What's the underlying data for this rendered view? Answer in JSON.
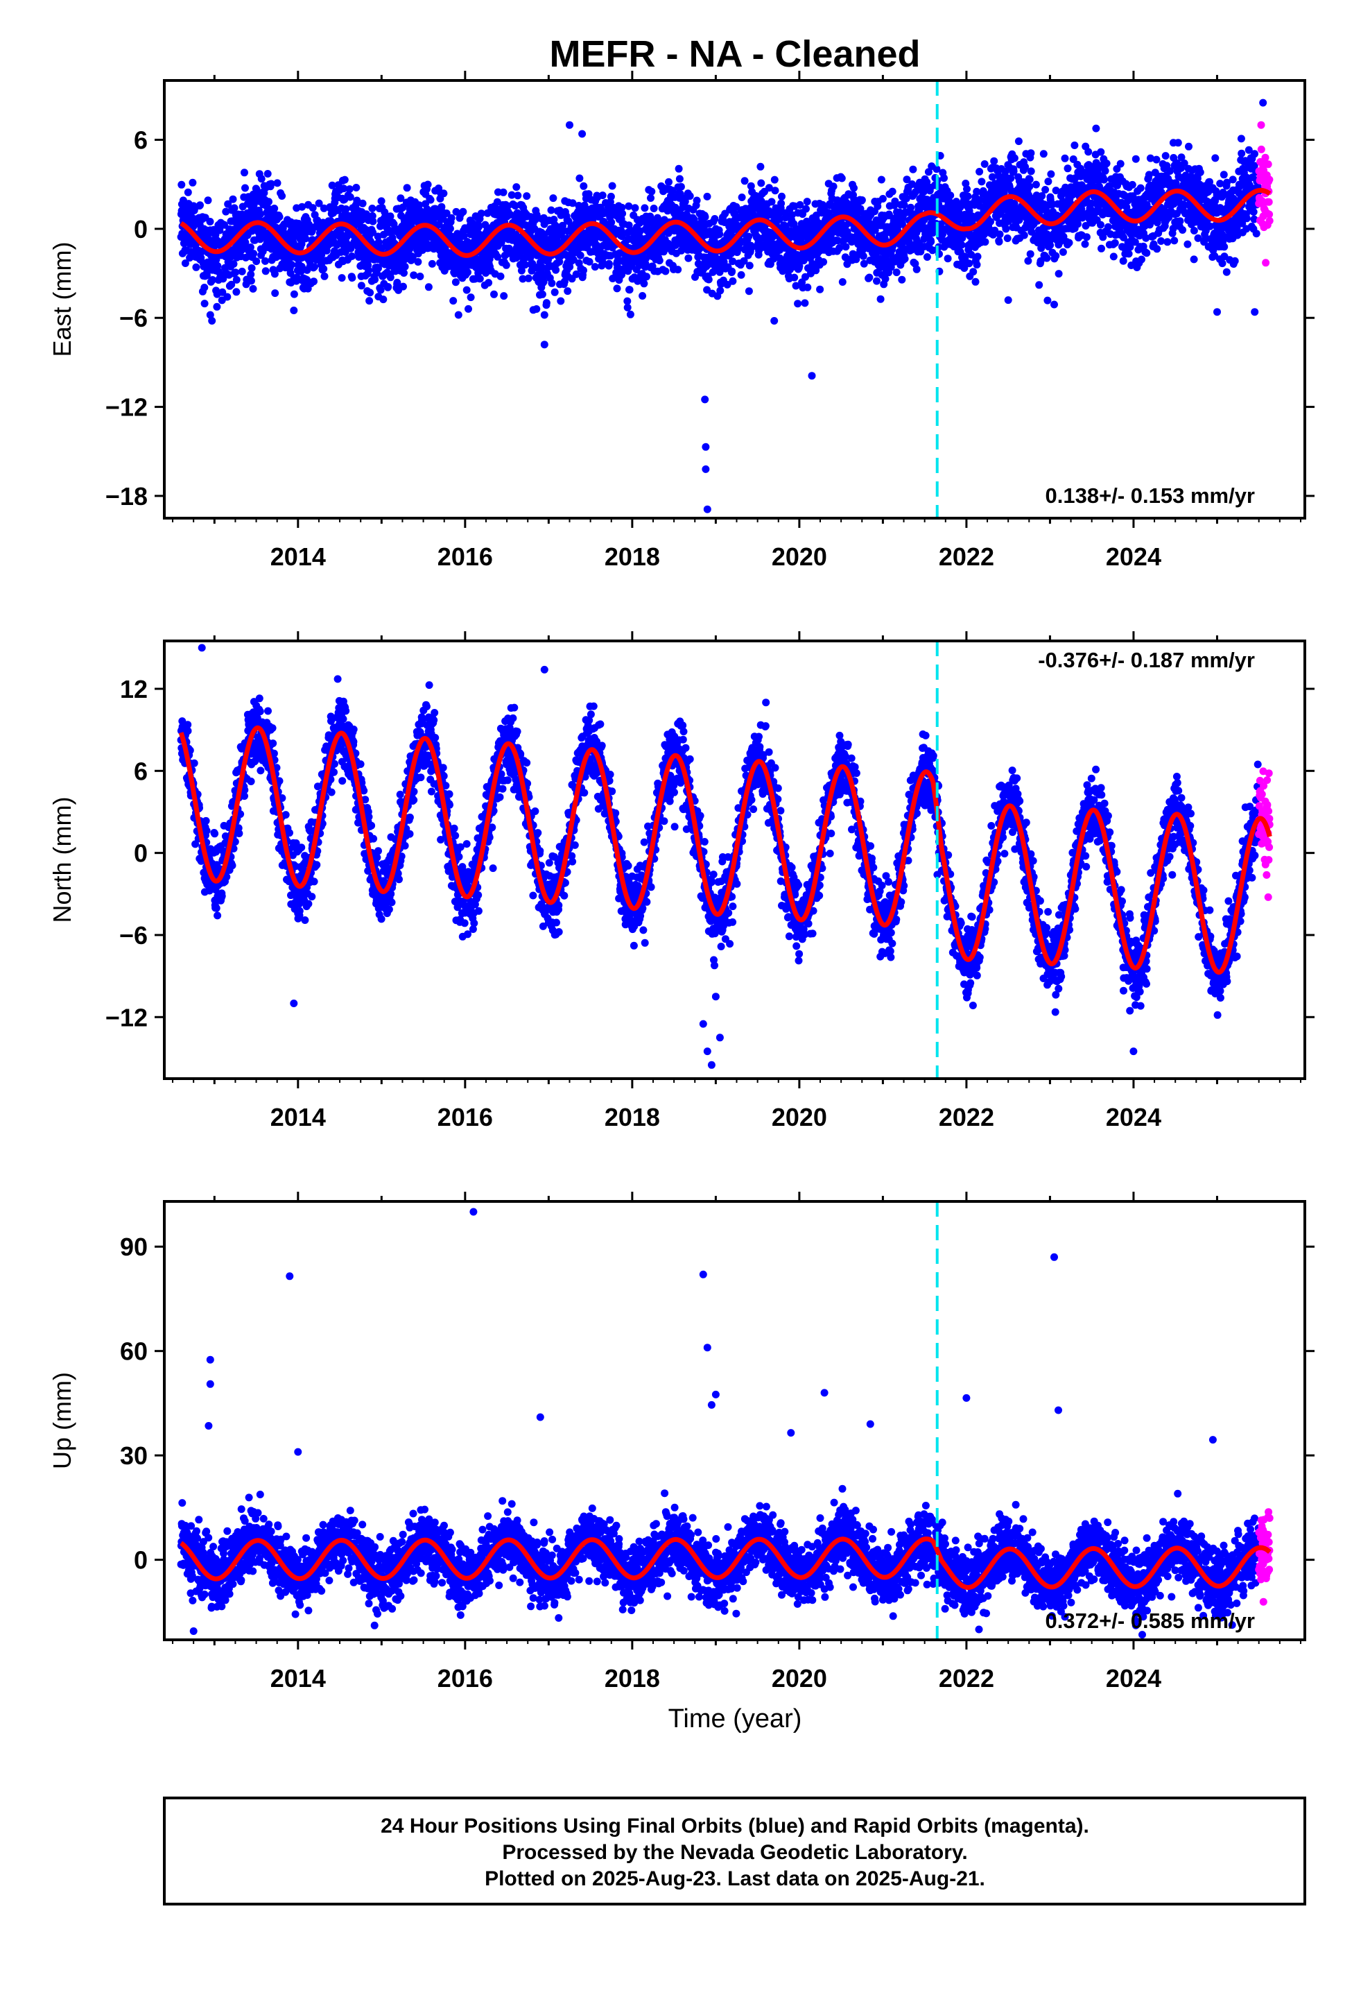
{
  "title": "MEFR  - NA - Cleaned",
  "colors": {
    "final_orbits": "#0000ff",
    "rapid_orbits": "#ff00ff",
    "model_fit": "#ff0000",
    "equipment_change": "#00e5ee",
    "frame": "#000000"
  },
  "x_axis": {
    "label": "Time (year)",
    "range": [
      2012.4,
      2026.05
    ],
    "ticks": [
      2014,
      2016,
      2018,
      2020,
      2022,
      2024
    ],
    "tick_labels": [
      "2014",
      "2016",
      "2018",
      "2020",
      "2022",
      "2024"
    ]
  },
  "footnote": {
    "line1": "24 Hour Positions Using Final Orbits (blue) and Rapid Orbits (magenta).",
    "line2": "Processed by the Nevada Geodetic Laboratory.",
    "line3": "Plotted on 2025-Aug-23. Last data on 2025-Aug-21."
  },
  "chart_data": [
    {
      "type": "scatter",
      "component": "East",
      "ylabel": "East (mm)",
      "ylim": [
        -19.5,
        10
      ],
      "yticks": [
        6,
        0,
        -6,
        -12,
        -18
      ],
      "ytick_labels": [
        "6",
        "0",
        "−6",
        "−12",
        "−18"
      ],
      "rate_label": "0.138+/- 0.153 mm/yr",
      "equipment_change_year": 2021.65,
      "final_orbits_span": [
        2012.6,
        2025.5
      ],
      "rapid_orbits_span": [
        2025.5,
        2025.63
      ],
      "model": {
        "mean_trend": [
          [
            2012.6,
            -0.5
          ],
          [
            2016.0,
            -0.8
          ],
          [
            2019.0,
            -0.5
          ],
          [
            2021.5,
            0.0
          ],
          [
            2022.0,
            1.0
          ],
          [
            2023.5,
            1.5
          ],
          [
            2025.6,
            1.6
          ]
        ],
        "annual_amplitude": 1.0,
        "scatter": 1.4
      },
      "outliers": [
        {
          "x": 2012.95,
          "y": -5.8
        },
        {
          "x": 2012.97,
          "y": -6.2
        },
        {
          "x": 2016.95,
          "y": -7.8
        },
        {
          "x": 2016.95,
          "y": -5.8
        },
        {
          "x": 2017.25,
          "y": 7.0
        },
        {
          "x": 2017.4,
          "y": 6.4
        },
        {
          "x": 2018.87,
          "y": -11.5
        },
        {
          "x": 2018.88,
          "y": -14.7
        },
        {
          "x": 2018.88,
          "y": -16.2
        },
        {
          "x": 2018.9,
          "y": -18.9
        },
        {
          "x": 2019.7,
          "y": -6.2
        },
        {
          "x": 2020.15,
          "y": -9.9
        },
        {
          "x": 2022.5,
          "y": -4.8
        },
        {
          "x": 2023.05,
          "y": -5.1
        },
        {
          "x": 2025.0,
          "y": -5.6
        },
        {
          "x": 2025.45,
          "y": -5.6
        },
        {
          "x": 2025.55,
          "y": 8.5
        },
        {
          "x": 2013.95,
          "y": -5.5
        }
      ]
    },
    {
      "type": "scatter",
      "component": "North",
      "ylabel": "North (mm)",
      "ylim": [
        -16.5,
        15.5
      ],
      "yticks": [
        12,
        6,
        0,
        -6,
        -12
      ],
      "ytick_labels": [
        "12",
        "6",
        "0",
        "−6",
        "−12"
      ],
      "rate_label": "-0.376+/- 0.187 mm/yr",
      "equipment_change_year": 2021.65,
      "final_orbits_span": [
        2012.6,
        2025.5
      ],
      "rapid_orbits_span": [
        2025.5,
        2025.63
      ],
      "model": {
        "mean_trend": [
          [
            2012.6,
            3.8
          ],
          [
            2016.5,
            2.3
          ],
          [
            2019.5,
            1.0
          ],
          [
            2021.6,
            0.2
          ],
          [
            2021.7,
            -2.0
          ],
          [
            2025.6,
            -3.2
          ]
        ],
        "annual_amplitude": 5.7,
        "scatter": 1.3
      },
      "outliers": [
        {
          "x": 2012.85,
          "y": 15.0
        },
        {
          "x": 2016.95,
          "y": 13.4
        },
        {
          "x": 2013.95,
          "y": -11.0
        },
        {
          "x": 2018.85,
          "y": -12.5
        },
        {
          "x": 2018.9,
          "y": -14.5
        },
        {
          "x": 2018.95,
          "y": -15.5
        },
        {
          "x": 2019.05,
          "y": -13.5
        },
        {
          "x": 2019.0,
          "y": -10.5
        },
        {
          "x": 2024.0,
          "y": -14.5
        },
        {
          "x": 2019.6,
          "y": 11.0
        }
      ]
    },
    {
      "type": "scatter",
      "component": "Up",
      "ylabel": "Up (mm)",
      "ylim": [
        -23,
        103
      ],
      "yticks": [
        90,
        60,
        30,
        0
      ],
      "ytick_labels": [
        "90",
        "60",
        "30",
        "0"
      ],
      "rate_label": "0.372+/- 0.585 mm/yr",
      "equipment_change_year": 2021.65,
      "final_orbits_span": [
        2012.6,
        2025.5
      ],
      "rapid_orbits_span": [
        2025.5,
        2025.63
      ],
      "model": {
        "mean_trend": [
          [
            2012.6,
            0.0
          ],
          [
            2021.6,
            0.5
          ],
          [
            2021.7,
            -2.5
          ],
          [
            2025.6,
            -2.0
          ]
        ],
        "annual_amplitude": 5.5,
        "scatter": 4.5
      },
      "outliers": [
        {
          "x": 2012.95,
          "y": 57.5
        },
        {
          "x": 2012.95,
          "y": 50.5
        },
        {
          "x": 2012.93,
          "y": 38.5
        },
        {
          "x": 2013.9,
          "y": 81.5
        },
        {
          "x": 2016.1,
          "y": 100.0
        },
        {
          "x": 2016.9,
          "y": 41.0
        },
        {
          "x": 2018.85,
          "y": 82.0
        },
        {
          "x": 2018.9,
          "y": 61.0
        },
        {
          "x": 2019.0,
          "y": 47.5
        },
        {
          "x": 2018.95,
          "y": 44.5
        },
        {
          "x": 2019.9,
          "y": 36.5
        },
        {
          "x": 2020.3,
          "y": 48.0
        },
        {
          "x": 2020.85,
          "y": 39.0
        },
        {
          "x": 2022.0,
          "y": 46.5
        },
        {
          "x": 2023.05,
          "y": 87.0
        },
        {
          "x": 2023.1,
          "y": 43.0
        },
        {
          "x": 2024.95,
          "y": 34.5
        },
        {
          "x": 2014.0,
          "y": 31.0
        },
        {
          "x": 2012.75,
          "y": -20.5
        },
        {
          "x": 2022.15,
          "y": -20.0
        }
      ]
    }
  ]
}
